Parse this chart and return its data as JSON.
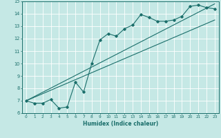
{
  "xlabel": "Humidex (Indice chaleur)",
  "ylabel": "",
  "xlim": [
    -0.5,
    23.5
  ],
  "ylim": [
    6,
    15
  ],
  "xticks": [
    0,
    1,
    2,
    3,
    4,
    5,
    6,
    7,
    8,
    9,
    10,
    11,
    12,
    13,
    14,
    15,
    16,
    17,
    18,
    19,
    20,
    21,
    22,
    23
  ],
  "yticks": [
    6,
    7,
    8,
    9,
    10,
    11,
    12,
    13,
    14,
    15
  ],
  "bg_color": "#c5e8e5",
  "line_color": "#1a6e6a",
  "curve_x": [
    0,
    1,
    2,
    3,
    4,
    5,
    6,
    7,
    8,
    9,
    10,
    11,
    12,
    13,
    14,
    15,
    16,
    17,
    18,
    19,
    20,
    21,
    22,
    23
  ],
  "curve_y": [
    7.0,
    6.8,
    6.8,
    7.1,
    6.4,
    6.5,
    8.5,
    7.7,
    10.0,
    11.9,
    12.4,
    12.2,
    12.8,
    13.1,
    13.95,
    13.7,
    13.4,
    13.4,
    13.5,
    13.8,
    14.6,
    14.7,
    14.5,
    14.4
  ],
  "line1_x": [
    0,
    23
  ],
  "line1_y": [
    7.0,
    13.5
  ],
  "line2_x": [
    0,
    23
  ],
  "line2_y": [
    7.0,
    14.8
  ]
}
